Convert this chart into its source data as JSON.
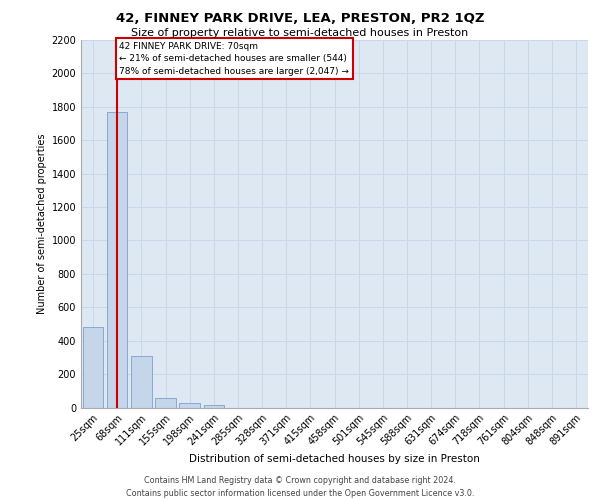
{
  "title1": "42, FINNEY PARK DRIVE, LEA, PRESTON, PR2 1QZ",
  "title2": "Size of property relative to semi-detached houses in Preston",
  "xlabel": "Distribution of semi-detached houses by size in Preston",
  "ylabel": "Number of semi-detached properties",
  "footnote1": "Contains HM Land Registry data © Crown copyright and database right 2024.",
  "footnote2": "Contains public sector information licensed under the Open Government Licence v3.0.",
  "categories": [
    "25sqm",
    "68sqm",
    "111sqm",
    "155sqm",
    "198sqm",
    "241sqm",
    "285sqm",
    "328sqm",
    "371sqm",
    "415sqm",
    "458sqm",
    "501sqm",
    "545sqm",
    "588sqm",
    "631sqm",
    "674sqm",
    "718sqm",
    "761sqm",
    "804sqm",
    "848sqm",
    "891sqm"
  ],
  "values": [
    480,
    1770,
    310,
    55,
    25,
    15,
    0,
    0,
    0,
    0,
    0,
    0,
    0,
    0,
    0,
    0,
    0,
    0,
    0,
    0,
    0
  ],
  "bar_color": "#c5d6ea",
  "bar_edge_color": "#7aa3cc",
  "annotation_title": "42 FINNEY PARK DRIVE: 70sqm",
  "annotation_line1": "← 21% of semi-detached houses are smaller (544)",
  "annotation_line2": "78% of semi-detached houses are larger (2,047) →",
  "annotation_box_facecolor": "#ffffff",
  "annotation_box_edgecolor": "#cc0000",
  "ylim_max": 2200,
  "ytick_step": 200,
  "property_line_color": "#cc0000",
  "property_line_x": 1.0,
  "grid_color": "#c8d8e8",
  "plot_bg_color": "#dde8f2",
  "fig_bg_color": "#ffffff"
}
